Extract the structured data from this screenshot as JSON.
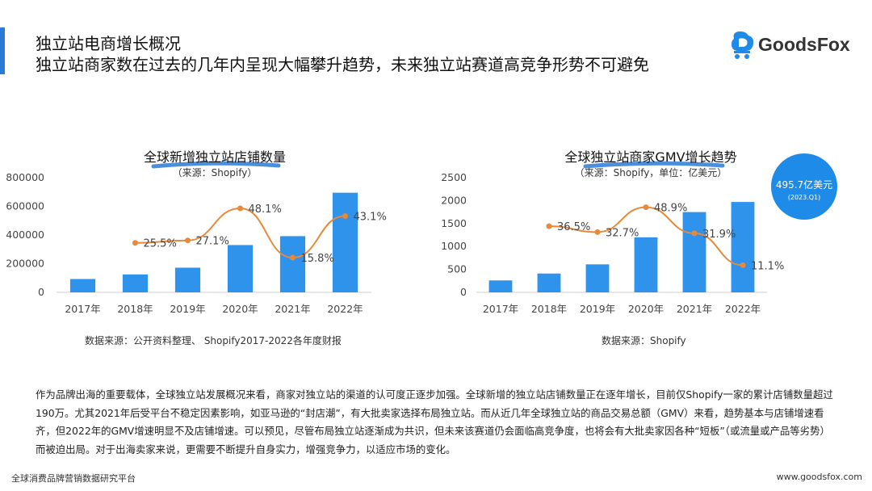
{
  "header": {
    "title_line1": "独立站电商增长概况",
    "title_line2": "独立站商家数在过去的几年内呈现大幅攀升趋势，未来独立站赛道高竞争形势不可避免"
  },
  "logo": {
    "text": "GoodsFox"
  },
  "colors": {
    "bar": "#2f93ec",
    "line": "#e8893a",
    "highlight": "#2b7bd6",
    "bubble": "#1f8be9"
  },
  "chart_data": [
    {
      "type": "bar",
      "title": "全球新增独立站店铺数量",
      "subtitle": "（来源：Shopify）",
      "categories": [
        "2017年",
        "2018年",
        "2019年",
        "2020年",
        "2021年",
        "2022年"
      ],
      "series": [
        {
          "values": [
            93000,
            125000,
            172000,
            330000,
            392000,
            695000
          ]
        },
        {
          "type": "line",
          "values": [
            null,
            25.5,
            27.1,
            48.1,
            15.8,
            43.1
          ],
          "labels": [
            "",
            "25.5%",
            "27.1%",
            "48.1%",
            "15.8%",
            "43.1%"
          ]
        }
      ],
      "yticks": [
        "800000",
        "600000",
        "400000",
        "200000",
        "0"
      ],
      "ylim": [
        0,
        800000
      ],
      "source": "数据来源：公开资料整理、 Shopify2017-2022各年度财报"
    },
    {
      "type": "bar",
      "title": "全球独立站商家GMV增长趋势",
      "subtitle": "（来源：Shopify，单位：亿美元）",
      "categories": [
        "2017年",
        "2018年",
        "2019年",
        "2020年",
        "2021年",
        "2022年"
      ],
      "series": [
        {
          "values": [
            260,
            410,
            610,
            1200,
            1750,
            1970
          ]
        },
        {
          "type": "line",
          "values": [
            null,
            36.5,
            32.7,
            48.9,
            31.9,
            11.1
          ],
          "labels": [
            "",
            "36.5%",
            "32.7%",
            "48.9%",
            "31.9%",
            "11.1%"
          ]
        }
      ],
      "yticks": [
        "2500",
        "2000",
        "1500",
        "1000",
        "500",
        "0"
      ],
      "ylim": [
        0,
        2500
      ],
      "callout": {
        "value": "495.7亿美元",
        "period": "(2023.Q1)"
      },
      "source": "数据来源：Shopify"
    }
  ],
  "body_text": "作为品牌出海的重要载体，全球独立站发展概况来看，商家对独立站的渠道的认可度正逐步加强。全球新增的独立站店铺数量正在逐年增长，目前仅Shopify一家的累计店铺数量超过190万。尤其2021年后受平台不稳定因素影响，如亚马逊的“封店潮”，有大批卖家选择布局独立站。而从近几年全球独立站的商品交易总额（GMV）来看，趋势基本与店铺增速看齐，但2022年的GMV增速明显不及店铺增速。可以预见，尽管布局独立站逐渐成为共识，但未来该赛道仍会面临高竞争度，也将会有大批卖家因各种“短板”（或流量或产品等劣势）而被迫出局。对于出海卖家来说，更需要不断提升自身实力，增强竞争力，以适应市场的变化。",
  "footer": {
    "left": "全球消费品牌营销数据研究平台",
    "right": "www.goodsfox.com"
  }
}
